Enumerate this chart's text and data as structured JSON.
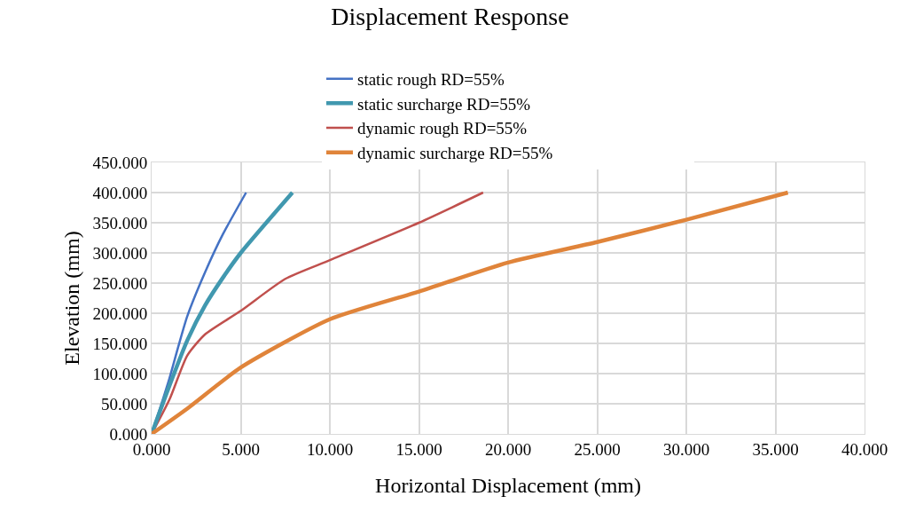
{
  "chart_data": {
    "type": "line",
    "title": "Displacement Response",
    "xlabel": "Horizontal Displacement (mm)",
    "ylabel": "Elevation (mm)",
    "xlim": [
      0,
      40
    ],
    "ylim": [
      0,
      450
    ],
    "xticks": [
      {
        "value": 0,
        "label": "0.000"
      },
      {
        "value": 5,
        "label": "5.000"
      },
      {
        "value": 10,
        "label": "10.000"
      },
      {
        "value": 15,
        "label": "15.000"
      },
      {
        "value": 20,
        "label": "20.000"
      },
      {
        "value": 25,
        "label": "25.000"
      },
      {
        "value": 30,
        "label": "30.000"
      },
      {
        "value": 35,
        "label": "35.000"
      },
      {
        "value": 40,
        "label": "40.000"
      }
    ],
    "yticks": [
      {
        "value": 0,
        "label": "0.000"
      },
      {
        "value": 50,
        "label": "50.000"
      },
      {
        "value": 100,
        "label": "100.000"
      },
      {
        "value": 150,
        "label": "150.000"
      },
      {
        "value": 200,
        "label": "200.000"
      },
      {
        "value": 250,
        "label": "250.000"
      },
      {
        "value": 300,
        "label": "300.000"
      },
      {
        "value": 350,
        "label": "350.000"
      },
      {
        "value": 400,
        "label": "400.000"
      },
      {
        "value": 450,
        "label": "450.000"
      }
    ],
    "grid": true,
    "legend": "top",
    "marker": "none",
    "line_style": "solid",
    "series": [
      {
        "name": "static rough RD=55%",
        "color": "#4472c4",
        "x": [
          0,
          0.5,
          1,
          1.5,
          2,
          3,
          4,
          5.3
        ],
        "values": [
          0,
          45,
          92,
          145,
          195,
          268,
          331,
          400
        ]
      },
      {
        "name": "dynamic rough RD=55%",
        "color": "#c0504d",
        "x": [
          0,
          1,
          2,
          3,
          5,
          7.5,
          10,
          15,
          18.6
        ],
        "values": [
          0,
          57,
          130,
          165,
          204,
          257,
          288,
          350,
          400
        ]
      },
      {
        "name": "static surcharge RD=55%",
        "color": "#4198af",
        "x": [
          0,
          1,
          2,
          3,
          4,
          5,
          7.9
        ],
        "values": [
          0,
          80,
          155,
          213,
          259,
          300,
          400
        ]
      },
      {
        "name": "dynamic surcharge RD=55%",
        "color": "#e0843a",
        "x": [
          0,
          2,
          5,
          10,
          15,
          20,
          25,
          30,
          35.7
        ],
        "values": [
          0,
          42,
          110,
          190,
          236,
          284,
          318,
          355,
          400
        ]
      }
    ]
  }
}
